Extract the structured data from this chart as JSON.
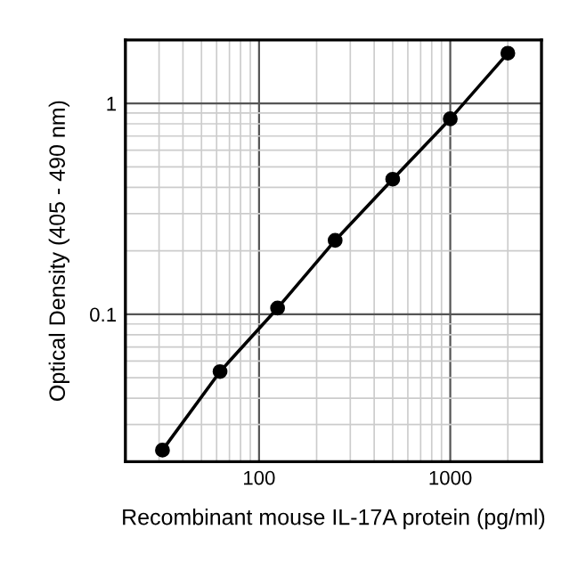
{
  "chart_data": {
    "type": "line",
    "xlabel": "Recombinant mouse IL-17A protein (pg/ml)",
    "ylabel": "Optical Density (405 - 490 nm)",
    "x": [
      31.25,
      62.5,
      125,
      250,
      500,
      1000,
      2000
    ],
    "series": [
      {
        "color": "#000000",
        "values": [
          0.0227,
          0.0535,
          0.107,
          0.224,
          0.437,
          0.845,
          1.73
        ]
      }
    ],
    "log": "xy",
    "xlim": [
      20,
      3000
    ],
    "ylim": [
      0.02,
      2
    ],
    "xticks": [
      100,
      1000
    ],
    "yticks": [
      0.1,
      1
    ],
    "grid": true,
    "marker": "circle",
    "line_style": "solid"
  }
}
